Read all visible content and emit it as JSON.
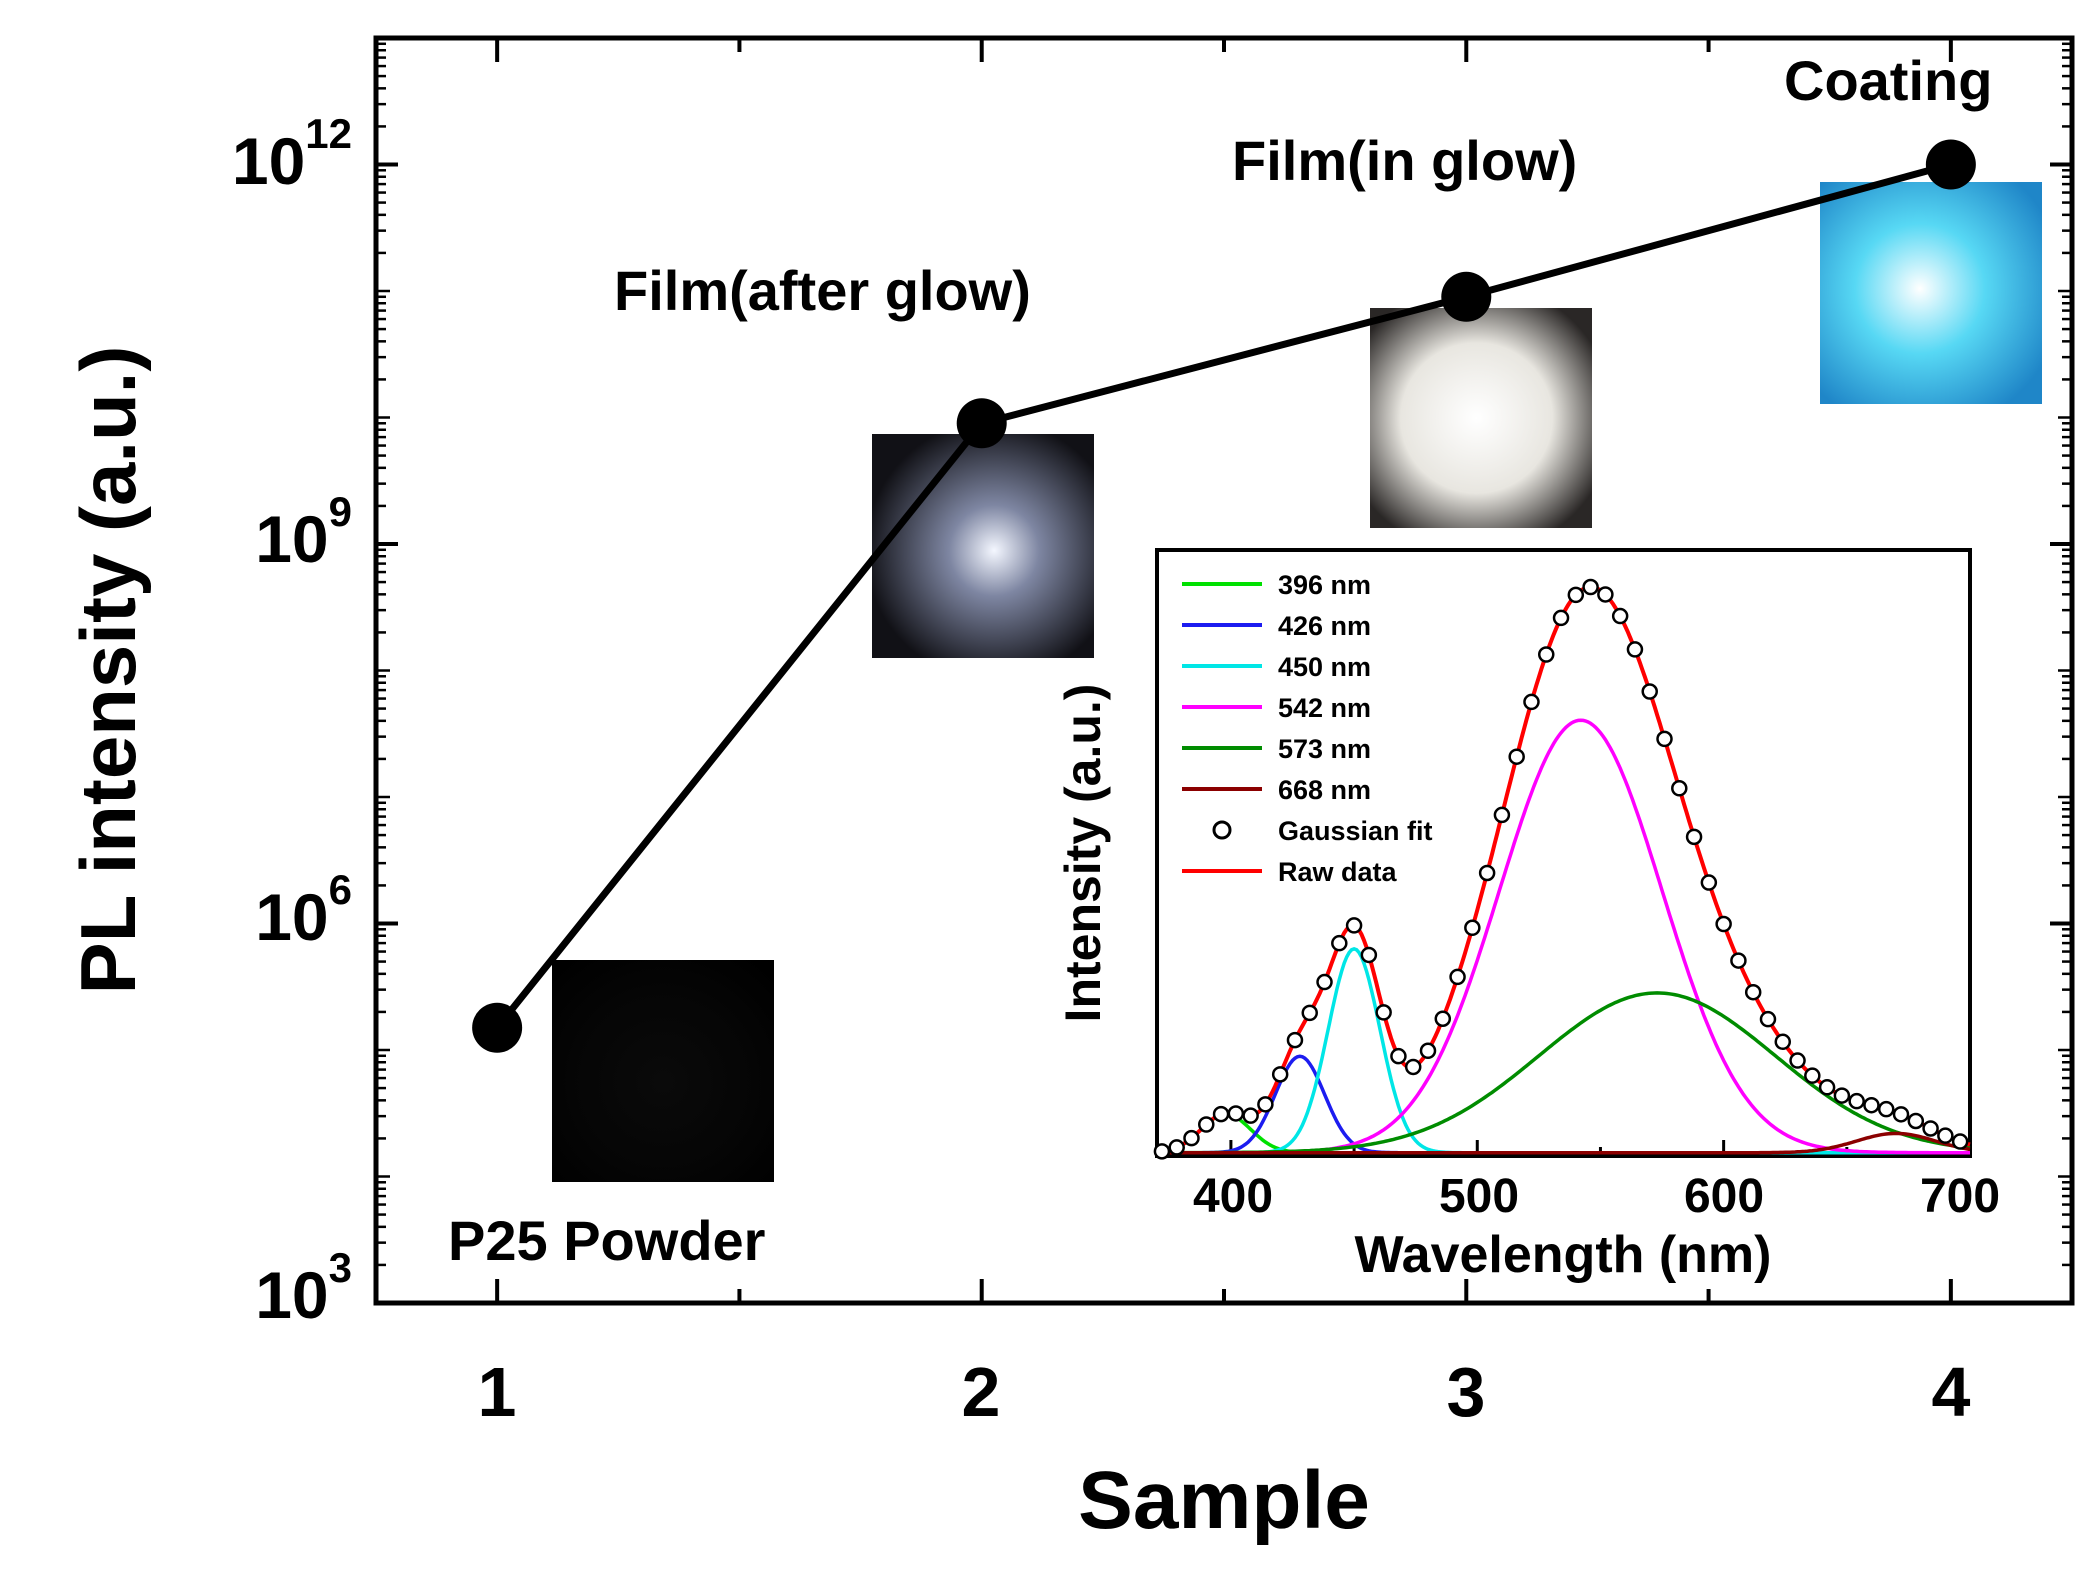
{
  "chart_data": [
    {
      "id": "main",
      "type": "line",
      "xlabel": "Sample",
      "ylabel": "PL intensity (a.u.)",
      "yscale": "log",
      "ylim_exponents": [
        3,
        13
      ],
      "xlim": [
        0.75,
        4.25
      ],
      "x_ticks": [
        1,
        2,
        3,
        4
      ],
      "y_ticks": [
        {
          "base": "10",
          "exp": "3"
        },
        {
          "base": "10",
          "exp": "6"
        },
        {
          "base": "10",
          "exp": "9"
        },
        {
          "base": "10",
          "exp": "12"
        }
      ],
      "x": [
        1,
        2,
        3,
        4
      ],
      "values": [
        150000.0,
        9000000000.0,
        90000000000.0,
        1000000000000.0
      ],
      "point_labels": [
        "P25 Powder",
        "Film(after glow)",
        "Film(in glow)",
        "Coating"
      ],
      "photos": [
        {
          "name": "p25-powder-photo",
          "description": "dark",
          "colors": [
            "#0a0a0a",
            "#050505",
            "#000000"
          ]
        },
        {
          "name": "film-after-glow-photo",
          "description": "faint white glow",
          "colors": [
            "#f4f7ff",
            "#7e86a2",
            "#111116"
          ]
        },
        {
          "name": "film-in-glow-photo",
          "description": "bright white glow",
          "colors": [
            "#ffffff",
            "#e8e6e0",
            "#2a2726"
          ]
        },
        {
          "name": "coating-photo",
          "description": "bright cyan-blue glow",
          "colors": [
            "#ffffff",
            "#57d8f4",
            "#1f86c8"
          ]
        }
      ],
      "colors": {
        "line": "#000000",
        "marker": "#000000"
      }
    },
    {
      "id": "inset",
      "type": "line",
      "xlabel": "Wavelength (nm)",
      "ylabel": "Intensity (a.u.)",
      "xlim": [
        370,
        700
      ],
      "x_ticks": [
        400,
        500,
        600,
        700
      ],
      "ylim": [
        0,
        1.1
      ],
      "legend_location": "top-left",
      "series": [
        {
          "name": "396 nm",
          "kind": "gaussian",
          "center": 398,
          "amplitude": 0.07,
          "sigma": 10,
          "color": "#00e000"
        },
        {
          "name": "426 nm",
          "kind": "gaussian",
          "center": 428,
          "amplitude": 0.175,
          "sigma": 10,
          "color": "#1c1cf0"
        },
        {
          "name": "450 nm",
          "kind": "gaussian",
          "center": 450,
          "amplitude": 0.37,
          "sigma": 10.5,
          "color": "#00e6e6"
        },
        {
          "name": "542 nm",
          "kind": "gaussian",
          "center": 542,
          "amplitude": 0.785,
          "sigma": 33,
          "color": "#ff00ff"
        },
        {
          "name": "573 nm",
          "kind": "gaussian",
          "center": 573,
          "amplitude": 0.29,
          "sigma": 48,
          "color": "#008c00"
        },
        {
          "name": "668 nm",
          "kind": "gaussian",
          "center": 670,
          "amplitude": 0.035,
          "sigma": 16,
          "color": "#8b0000"
        },
        {
          "name": "Gaussian fit",
          "kind": "markers",
          "sum_of": [
            0,
            1,
            2,
            3,
            4,
            5
          ],
          "x_start": 372,
          "x_end": 700,
          "x_step": 6,
          "color": "#000000"
        },
        {
          "name": "Raw data",
          "kind": "sum",
          "sum_of": [
            0,
            1,
            2,
            3,
            4,
            5
          ],
          "color": "#ff0000"
        }
      ]
    }
  ]
}
